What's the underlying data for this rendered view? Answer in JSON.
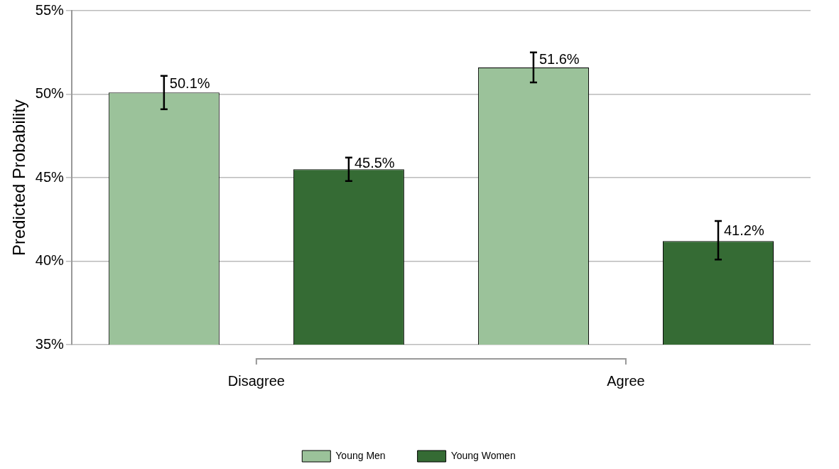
{
  "chart_data": {
    "type": "bar",
    "ylabel": "Predicted Probability",
    "categories": [
      "Disagree",
      "Agree"
    ],
    "series": [
      {
        "name": "Young Men",
        "color": "#9bc29a",
        "values": [
          50.1,
          51.6
        ],
        "errors": [
          [
            49.1,
            51.1
          ],
          [
            50.7,
            52.5
          ]
        ],
        "value_labels": [
          "50.1%",
          "51.6%"
        ]
      },
      {
        "name": "Young Women",
        "color": "#356b34",
        "values": [
          45.5,
          41.2
        ],
        "errors": [
          [
            44.8,
            46.2
          ],
          [
            40.1,
            42.4
          ]
        ],
        "value_labels": [
          "45.5%",
          "41.2%"
        ]
      }
    ],
    "ylim": [
      35,
      55
    ],
    "yticks": [
      {
        "value": 35,
        "label": "35%"
      },
      {
        "value": 40,
        "label": "40%"
      },
      {
        "value": 45,
        "label": "45%"
      },
      {
        "value": 50,
        "label": "50%"
      },
      {
        "value": 55,
        "label": "55%"
      }
    ],
    "grid": "y",
    "legend": "bottom"
  }
}
